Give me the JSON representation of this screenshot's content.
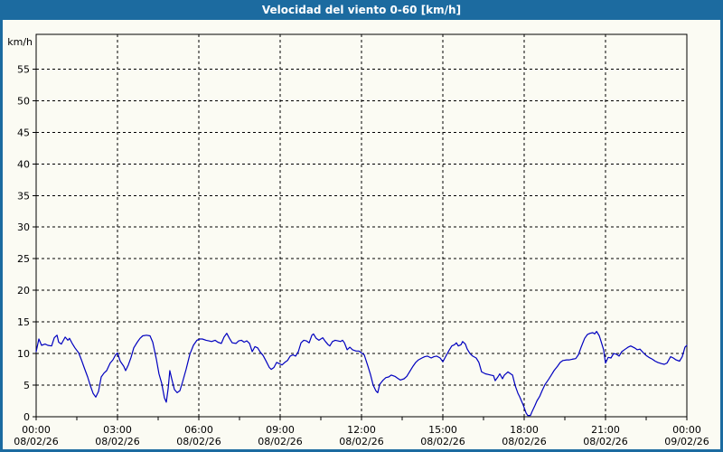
{
  "window": {
    "title": "Velocidad del viento 0-60 [km/h]"
  },
  "colors": {
    "titlebar_bg": "#1c6ba0",
    "frame_border": "#1c6ba0",
    "content_bg": "#fbfbf3",
    "title_text": "#ffffff",
    "line": "#0000bf",
    "grid": "#000000",
    "text": "#000000"
  },
  "chart_data": {
    "type": "line",
    "title": "Velocidad del viento 0-60 [km/h]",
    "ylabel": "km/h",
    "ylim": [
      0,
      60.5
    ],
    "yticks": [
      0,
      5,
      10,
      15,
      20,
      25,
      30,
      35,
      40,
      45,
      50,
      55
    ],
    "grid": "dashed",
    "legend": "none",
    "x_unit": "hours",
    "xlim": [
      0,
      24
    ],
    "x_minor_tick_step_hours": 1.5,
    "x_major_ticks": [
      {
        "hours": 0,
        "time": "00:00",
        "date": "08/02/26"
      },
      {
        "hours": 3,
        "time": "03:00",
        "date": "08/02/26"
      },
      {
        "hours": 6,
        "time": "06:00",
        "date": "08/02/26"
      },
      {
        "hours": 9,
        "time": "09:00",
        "date": "08/02/26"
      },
      {
        "hours": 12,
        "time": "12:00",
        "date": "08/02/26"
      },
      {
        "hours": 15,
        "time": "15:00",
        "date": "08/02/26"
      },
      {
        "hours": 18,
        "time": "18:00",
        "date": "08/02/26"
      },
      {
        "hours": 21,
        "time": "21:00",
        "date": "08/02/26"
      },
      {
        "hours": 24,
        "time": "00:00",
        "date": "09/02/26"
      }
    ],
    "series": [
      {
        "name": "Velocidad del viento",
        "unit": "km/h",
        "points": [
          [
            0,
            10.3
          ],
          [
            0.1,
            12.3
          ],
          [
            0.2,
            11.3
          ],
          [
            0.33,
            11.5
          ],
          [
            0.43,
            11.3
          ],
          [
            0.57,
            11.2
          ],
          [
            0.67,
            12.5
          ],
          [
            0.77,
            12.9
          ],
          [
            0.83,
            11.8
          ],
          [
            0.93,
            11.5
          ],
          [
            1.07,
            12.6
          ],
          [
            1.17,
            12.1
          ],
          [
            1.23,
            12.4
          ],
          [
            1.33,
            11.6
          ],
          [
            1.43,
            10.9
          ],
          [
            1.57,
            10.1
          ],
          [
            1.67,
            9.0
          ],
          [
            1.77,
            7.8
          ],
          [
            1.9,
            6.3
          ],
          [
            2.0,
            4.9
          ],
          [
            2.1,
            3.7
          ],
          [
            2.2,
            3.1
          ],
          [
            2.3,
            4.0
          ],
          [
            2.4,
            6.3
          ],
          [
            2.5,
            6.9
          ],
          [
            2.6,
            7.3
          ],
          [
            2.73,
            8.5
          ],
          [
            2.83,
            9.0
          ],
          [
            2.93,
            9.8
          ],
          [
            3.0,
            10.1
          ],
          [
            3.1,
            8.8
          ],
          [
            3.23,
            8.0
          ],
          [
            3.3,
            7.3
          ],
          [
            3.4,
            8.2
          ],
          [
            3.5,
            9.4
          ],
          [
            3.6,
            10.9
          ],
          [
            3.73,
            11.8
          ],
          [
            3.83,
            12.4
          ],
          [
            3.93,
            12.8
          ],
          [
            4.07,
            12.9
          ],
          [
            4.2,
            12.8
          ],
          [
            4.3,
            11.8
          ],
          [
            4.43,
            9.2
          ],
          [
            4.53,
            6.8
          ],
          [
            4.63,
            5.3
          ],
          [
            4.73,
            3.0
          ],
          [
            4.8,
            2.3
          ],
          [
            4.87,
            4.5
          ],
          [
            4.93,
            7.3
          ],
          [
            5.0,
            6.0
          ],
          [
            5.1,
            4.3
          ],
          [
            5.2,
            3.8
          ],
          [
            5.3,
            4.1
          ],
          [
            5.4,
            5.5
          ],
          [
            5.53,
            7.5
          ],
          [
            5.67,
            9.9
          ],
          [
            5.8,
            11.3
          ],
          [
            5.93,
            12.1
          ],
          [
            6.03,
            12.3
          ],
          [
            6.13,
            12.3
          ],
          [
            6.27,
            12.1
          ],
          [
            6.37,
            12.0
          ],
          [
            6.47,
            11.9
          ],
          [
            6.6,
            12.1
          ],
          [
            6.7,
            11.8
          ],
          [
            6.83,
            11.6
          ],
          [
            6.93,
            12.6
          ],
          [
            7.03,
            13.2
          ],
          [
            7.13,
            12.4
          ],
          [
            7.23,
            11.7
          ],
          [
            7.37,
            11.6
          ],
          [
            7.47,
            12.0
          ],
          [
            7.57,
            12.1
          ],
          [
            7.67,
            11.8
          ],
          [
            7.77,
            12.0
          ],
          [
            7.87,
            11.6
          ],
          [
            7.97,
            10.3
          ],
          [
            8.07,
            11.1
          ],
          [
            8.17,
            10.9
          ],
          [
            8.27,
            10.2
          ],
          [
            8.37,
            9.7
          ],
          [
            8.47,
            8.9
          ],
          [
            8.6,
            7.8
          ],
          [
            8.67,
            7.5
          ],
          [
            8.77,
            7.8
          ],
          [
            8.87,
            8.6
          ],
          [
            8.97,
            8.4
          ],
          [
            9.07,
            8.2
          ],
          [
            9.17,
            8.6
          ],
          [
            9.27,
            8.9
          ],
          [
            9.37,
            9.6
          ],
          [
            9.47,
            9.8
          ],
          [
            9.57,
            9.6
          ],
          [
            9.67,
            10.3
          ],
          [
            9.77,
            11.7
          ],
          [
            9.87,
            12.1
          ],
          [
            9.97,
            12.0
          ],
          [
            10.07,
            11.7
          ],
          [
            10.17,
            12.9
          ],
          [
            10.23,
            13.1
          ],
          [
            10.33,
            12.4
          ],
          [
            10.43,
            12.1
          ],
          [
            10.57,
            12.5
          ],
          [
            10.67,
            11.9
          ],
          [
            10.77,
            11.4
          ],
          [
            10.83,
            11.2
          ],
          [
            10.93,
            11.9
          ],
          [
            11.03,
            12.1
          ],
          [
            11.13,
            12.0
          ],
          [
            11.23,
            11.9
          ],
          [
            11.3,
            12.1
          ],
          [
            11.37,
            11.7
          ],
          [
            11.47,
            10.6
          ],
          [
            11.57,
            11.0
          ],
          [
            11.67,
            10.6
          ],
          [
            11.8,
            10.4
          ],
          [
            11.9,
            10.4
          ],
          [
            12.0,
            10.1
          ],
          [
            12.1,
            9.8
          ],
          [
            12.23,
            8.1
          ],
          [
            12.33,
            6.7
          ],
          [
            12.43,
            5.0
          ],
          [
            12.53,
            4.1
          ],
          [
            12.6,
            3.8
          ],
          [
            12.67,
            5.1
          ],
          [
            12.8,
            5.8
          ],
          [
            12.9,
            6.2
          ],
          [
            13.0,
            6.3
          ],
          [
            13.1,
            6.6
          ],
          [
            13.23,
            6.4
          ],
          [
            13.33,
            6.1
          ],
          [
            13.43,
            5.8
          ],
          [
            13.57,
            6.0
          ],
          [
            13.67,
            6.4
          ],
          [
            13.77,
            7.1
          ],
          [
            13.9,
            8.0
          ],
          [
            14.0,
            8.6
          ],
          [
            14.1,
            9.0
          ],
          [
            14.23,
            9.3
          ],
          [
            14.33,
            9.5
          ],
          [
            14.43,
            9.6
          ],
          [
            14.57,
            9.3
          ],
          [
            14.67,
            9.5
          ],
          [
            14.77,
            9.6
          ],
          [
            14.9,
            9.3
          ],
          [
            15.0,
            8.7
          ],
          [
            15.1,
            9.5
          ],
          [
            15.23,
            10.5
          ],
          [
            15.33,
            11.2
          ],
          [
            15.43,
            11.4
          ],
          [
            15.5,
            11.7
          ],
          [
            15.57,
            11.2
          ],
          [
            15.67,
            11.4
          ],
          [
            15.73,
            11.9
          ],
          [
            15.83,
            11.5
          ],
          [
            15.9,
            10.7
          ],
          [
            16.0,
            10.0
          ],
          [
            16.1,
            9.6
          ],
          [
            16.23,
            9.3
          ],
          [
            16.33,
            8.6
          ],
          [
            16.43,
            7.1
          ],
          [
            16.57,
            6.8
          ],
          [
            16.67,
            6.7
          ],
          [
            16.77,
            6.6
          ],
          [
            16.87,
            6.5
          ],
          [
            16.93,
            5.7
          ],
          [
            17.03,
            6.3
          ],
          [
            17.1,
            6.8
          ],
          [
            17.2,
            6.0
          ],
          [
            17.27,
            6.6
          ],
          [
            17.4,
            7.1
          ],
          [
            17.5,
            6.8
          ],
          [
            17.57,
            6.6
          ],
          [
            17.67,
            4.9
          ],
          [
            17.77,
            3.7
          ],
          [
            17.83,
            3.2
          ],
          [
            17.9,
            2.5
          ],
          [
            17.97,
            1.8
          ],
          [
            18.07,
            0.6
          ],
          [
            18.13,
            0.2
          ],
          [
            18.23,
            0.2
          ],
          [
            18.3,
            0.9
          ],
          [
            18.4,
            1.8
          ],
          [
            18.47,
            2.5
          ],
          [
            18.57,
            3.2
          ],
          [
            18.67,
            4.2
          ],
          [
            18.77,
            5.1
          ],
          [
            18.9,
            5.9
          ],
          [
            19.0,
            6.6
          ],
          [
            19.1,
            7.3
          ],
          [
            19.23,
            8.0
          ],
          [
            19.33,
            8.6
          ],
          [
            19.43,
            8.9
          ],
          [
            19.57,
            9.0
          ],
          [
            19.67,
            9.0
          ],
          [
            19.77,
            9.1
          ],
          [
            19.9,
            9.2
          ],
          [
            20.0,
            9.8
          ],
          [
            20.1,
            11.0
          ],
          [
            20.23,
            12.4
          ],
          [
            20.33,
            13.0
          ],
          [
            20.43,
            13.2
          ],
          [
            20.53,
            13.3
          ],
          [
            20.6,
            13.1
          ],
          [
            20.67,
            13.5
          ],
          [
            20.77,
            12.8
          ],
          [
            20.83,
            12.0
          ],
          [
            20.93,
            10.6
          ],
          [
            21.0,
            8.5
          ],
          [
            21.1,
            9.4
          ],
          [
            21.2,
            9.3
          ],
          [
            21.3,
            10.0
          ],
          [
            21.4,
            9.9
          ],
          [
            21.5,
            9.6
          ],
          [
            21.6,
            10.3
          ],
          [
            21.73,
            10.7
          ],
          [
            21.83,
            11.0
          ],
          [
            21.93,
            11.2
          ],
          [
            22.07,
            10.9
          ],
          [
            22.17,
            10.6
          ],
          [
            22.27,
            10.7
          ],
          [
            22.4,
            10.1
          ],
          [
            22.5,
            9.7
          ],
          [
            22.6,
            9.4
          ],
          [
            22.73,
            9.1
          ],
          [
            22.83,
            8.8
          ],
          [
            22.93,
            8.6
          ],
          [
            23.07,
            8.4
          ],
          [
            23.17,
            8.3
          ],
          [
            23.27,
            8.5
          ],
          [
            23.4,
            9.5
          ],
          [
            23.5,
            9.3
          ],
          [
            23.6,
            9.0
          ],
          [
            23.73,
            8.8
          ],
          [
            23.83,
            9.5
          ],
          [
            23.93,
            11.0
          ],
          [
            24.0,
            11.3
          ]
        ]
      }
    ]
  }
}
